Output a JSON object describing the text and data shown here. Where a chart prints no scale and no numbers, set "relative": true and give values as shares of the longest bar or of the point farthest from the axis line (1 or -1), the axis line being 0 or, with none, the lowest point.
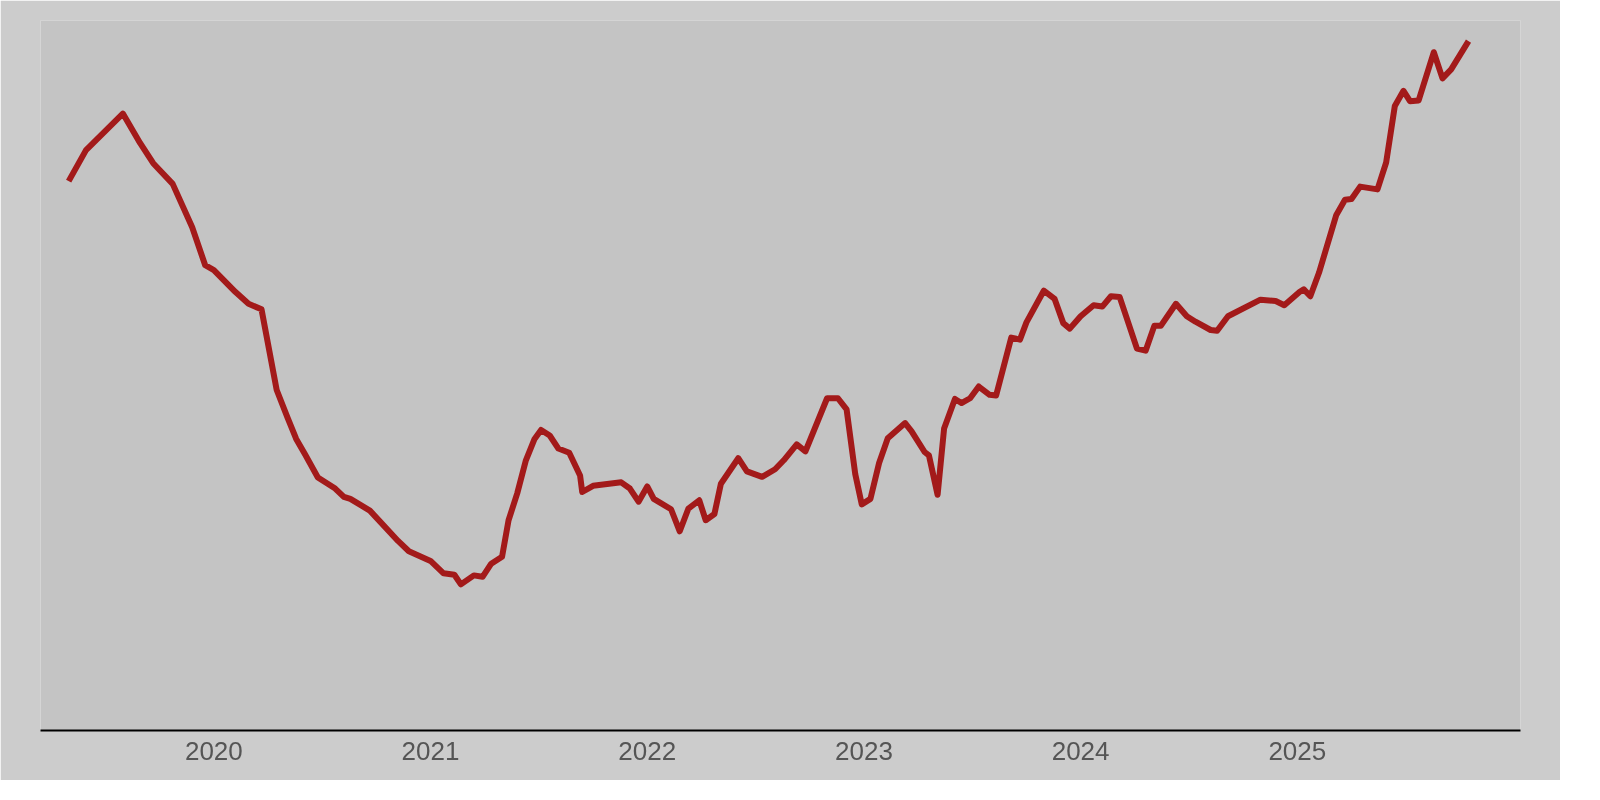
{
  "chart_data": {
    "type": "line",
    "relative": true,
    "x": [
      2019.33,
      2019.41,
      2019.58,
      2019.66,
      2019.72,
      2019.81,
      2019.9,
      2019.96,
      2020.0,
      2020.1,
      2020.16,
      2020.22,
      2020.29,
      2020.34,
      2020.38,
      2020.42,
      2020.48,
      2020.56,
      2020.6,
      2020.63,
      2020.72,
      2020.85,
      2020.9,
      2021.0,
      2021.06,
      2021.11,
      2021.14,
      2021.2,
      2021.24,
      2021.28,
      2021.33,
      2021.36,
      2021.4,
      2021.44,
      2021.48,
      2021.51,
      2021.55,
      2021.59,
      2021.64,
      2021.69,
      2021.7,
      2021.75,
      2021.88,
      2021.92,
      2021.96,
      2022.0,
      2022.03,
      2022.11,
      2022.15,
      2022.19,
      2022.24,
      2022.27,
      2022.31,
      2022.34,
      2022.42,
      2022.46,
      2022.53,
      2022.59,
      2022.63,
      2022.69,
      2022.73,
      2022.83,
      2022.88,
      2022.92,
      2022.96,
      2022.99,
      2023.03,
      2023.07,
      2023.11,
      2023.19,
      2023.22,
      2023.28,
      2023.3,
      2023.34,
      2023.37,
      2023.42,
      2023.45,
      2023.49,
      2023.53,
      2023.58,
      2023.61,
      2023.68,
      2023.72,
      2023.75,
      2023.83,
      2023.88,
      2023.92,
      2023.95,
      2024.0,
      2024.06,
      2024.1,
      2024.14,
      2024.18,
      2024.26,
      2024.3,
      2024.34,
      2024.37,
      2024.44,
      2024.49,
      2024.53,
      2024.6,
      2024.63,
      2024.68,
      2024.83,
      2024.9,
      2024.94,
      2025.01,
      2025.03,
      2025.06,
      2025.1,
      2025.18,
      2025.22,
      2025.25,
      2025.29,
      2025.37,
      2025.41,
      2025.45,
      2025.49,
      2025.52,
      2025.56,
      2025.63,
      2025.67,
      2025.71,
      2025.79
    ],
    "series": [
      {
        "color": "#a31a1a",
        "values": [
          0.797,
          0.842,
          0.895,
          0.852,
          0.823,
          0.793,
          0.73,
          0.675,
          0.668,
          0.636,
          0.619,
          0.611,
          0.494,
          0.454,
          0.423,
          0.401,
          0.367,
          0.351,
          0.339,
          0.336,
          0.319,
          0.275,
          0.26,
          0.246,
          0.228,
          0.226,
          0.212,
          0.225,
          0.223,
          0.242,
          0.252,
          0.305,
          0.344,
          0.392,
          0.423,
          0.436,
          0.428,
          0.409,
          0.403,
          0.37,
          0.346,
          0.355,
          0.36,
          0.351,
          0.332,
          0.354,
          0.336,
          0.321,
          0.289,
          0.322,
          0.334,
          0.305,
          0.314,
          0.358,
          0.395,
          0.376,
          0.368,
          0.379,
          0.392,
          0.415,
          0.405,
          0.482,
          0.482,
          0.466,
          0.372,
          0.328,
          0.336,
          0.388,
          0.424,
          0.446,
          0.434,
          0.404,
          0.399,
          0.342,
          0.438,
          0.481,
          0.475,
          0.482,
          0.499,
          0.487,
          0.486,
          0.57,
          0.567,
          0.592,
          0.638,
          0.626,
          0.591,
          0.583,
          0.601,
          0.617,
          0.615,
          0.63,
          0.629,
          0.554,
          0.551,
          0.587,
          0.587,
          0.619,
          0.601,
          0.593,
          0.581,
          0.58,
          0.601,
          0.625,
          0.623,
          0.617,
          0.636,
          0.64,
          0.63,
          0.664,
          0.748,
          0.77,
          0.771,
          0.789,
          0.785,
          0.824,
          0.906,
          0.928,
          0.913,
          0.914,
          0.984,
          0.946,
          0.959,
          1.0
        ]
      }
    ],
    "xlim": [
      2019.2,
      2026.03
    ],
    "xticks": [
      2020,
      2021,
      2022,
      2023,
      2024,
      2025
    ],
    "marker": "none",
    "line_style": "solid"
  }
}
